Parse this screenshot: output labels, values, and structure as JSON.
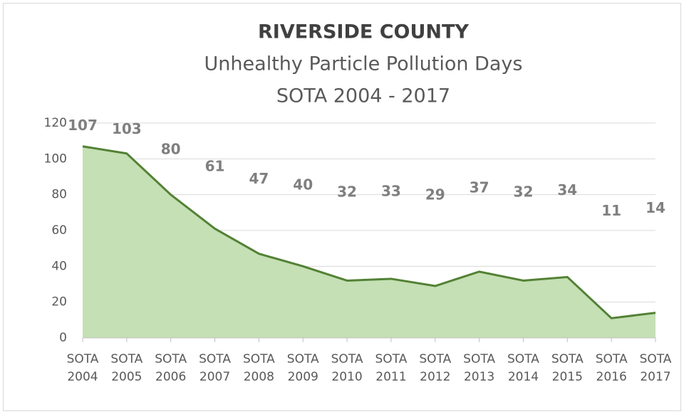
{
  "chart_data": {
    "type": "area",
    "title": "RIVERSIDE COUNTY",
    "subtitle": [
      "Unhealthy Particle Pollution Days",
      "SOTA 2004 - 2017"
    ],
    "categories": [
      "SOTA 2004",
      "SOTA 2005",
      "SOTA 2006",
      "SOTA 2007",
      "SOTA 2008",
      "SOTA 2009",
      "SOTA 2010",
      "SOTA 2011",
      "SOTA 2012",
      "SOTA 2013",
      "SOTA 2014",
      "SOTA 2015",
      "SOTA 2016",
      "SOTA 2017"
    ],
    "values": [
      107,
      103,
      80,
      61,
      47,
      40,
      32,
      33,
      29,
      37,
      32,
      34,
      11,
      14
    ],
    "color": "#538135",
    "fill": "#c5e0b4",
    "ylim": [
      0,
      120
    ],
    "yticks": [
      0,
      20,
      40,
      60,
      80,
      100,
      120
    ],
    "grid": true
  }
}
